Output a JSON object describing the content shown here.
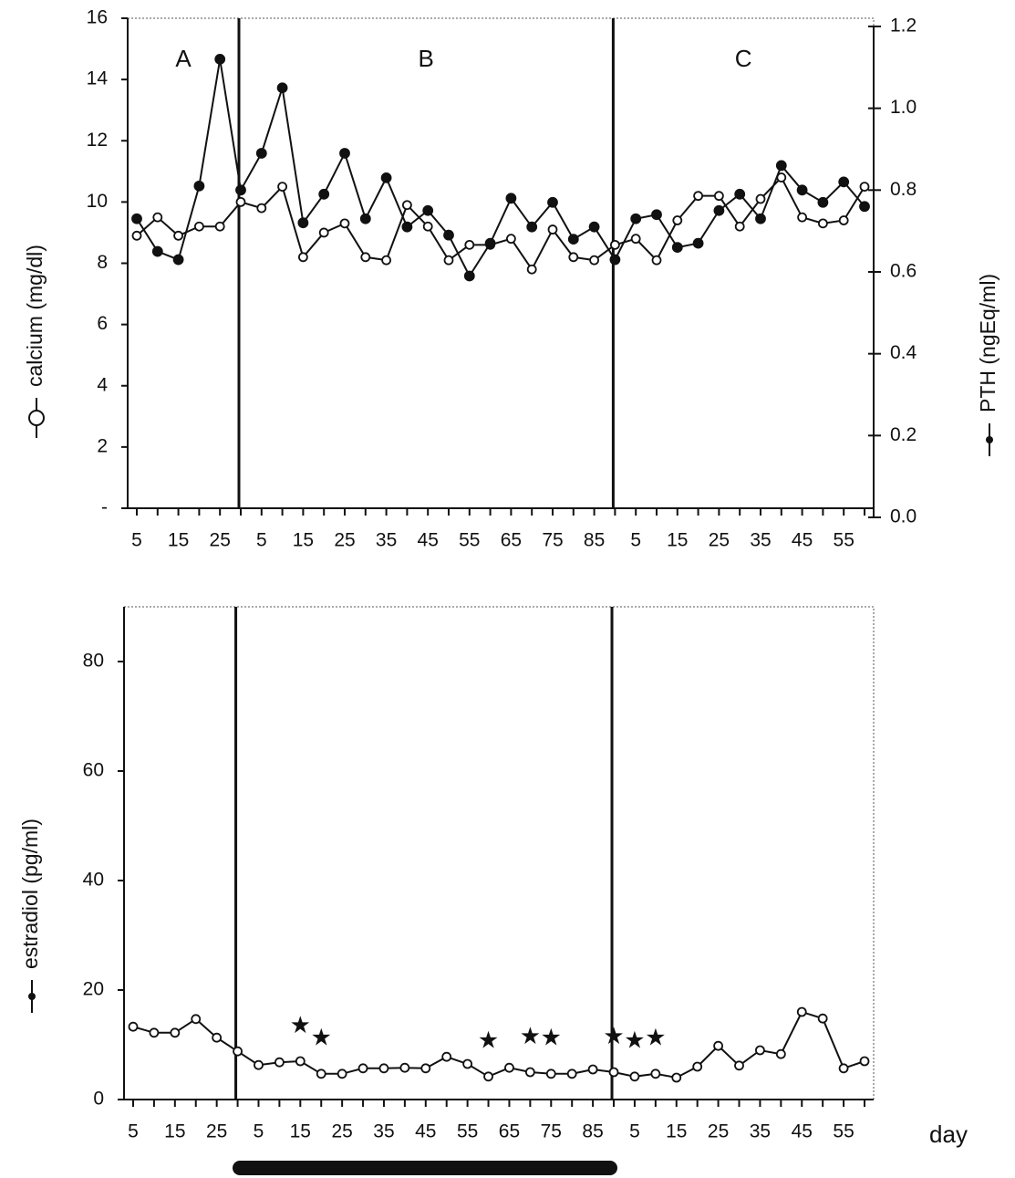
{
  "chart_data": [
    {
      "type": "line",
      "y_label": "calcium (mg/dl)",
      "y2_label": "PTH (ngEq/ml)",
      "annotations": [
        "A",
        "B",
        "C"
      ],
      "categories": [
        5,
        null,
        15,
        null,
        25,
        null,
        5,
        null,
        15,
        null,
        25,
        null,
        35,
        null,
        45,
        null,
        55,
        null,
        65,
        null,
        75,
        null,
        85,
        null,
        5,
        null,
        15,
        null,
        25,
        null,
        35,
        null,
        45,
        null,
        55,
        null
      ],
      "ylim": [
        0,
        16
      ],
      "yticks": [
        {
          "value": 0,
          "label": "-"
        },
        2,
        4,
        6,
        8,
        10,
        12,
        14,
        16
      ],
      "y2lim": [
        0,
        1.2
      ],
      "y2ticks": [
        {
          "value": 0,
          "label": "0.0"
        },
        0.2,
        0.4,
        0.6,
        0.8,
        {
          "value": 1,
          "label": "1.0"
        },
        1.2
      ],
      "series": [
        {
          "marker": "open",
          "color": "#111111",
          "values": [
            8.9,
            9.5,
            8.9,
            9.2,
            9.2,
            10.0,
            9.8,
            10.5,
            8.2,
            9.0,
            9.3,
            8.2,
            8.1,
            9.9,
            9.2,
            8.1,
            8.6,
            8.6,
            8.8,
            7.8,
            9.1,
            8.2,
            8.1,
            8.6,
            8.8,
            8.1,
            9.4,
            10.2,
            10.2,
            9.2,
            10.1,
            10.8,
            9.5,
            9.3,
            9.4,
            10.5
          ]
        },
        {
          "marker": "filled",
          "color": "#111111",
          "axis": "y2",
          "values": [
            0.73,
            0.65,
            0.63,
            0.81,
            1.12,
            0.8,
            0.89,
            1.05,
            0.72,
            0.79,
            0.89,
            0.73,
            0.83,
            0.71,
            0.75,
            0.69,
            0.59,
            0.67,
            0.78,
            0.71,
            0.77,
            0.68,
            0.71,
            0.63,
            0.73,
            0.74,
            0.66,
            0.67,
            0.75,
            0.79,
            0.73,
            0.86,
            0.8,
            0.77,
            0.82,
            0.76
          ]
        }
      ]
    },
    {
      "type": "line",
      "y_label": "estradiol (pg/ml)",
      "x_label": "day",
      "categories": [
        5,
        null,
        15,
        null,
        25,
        null,
        5,
        null,
        15,
        null,
        25,
        null,
        35,
        null,
        45,
        null,
        55,
        null,
        65,
        null,
        75,
        null,
        85,
        null,
        5,
        null,
        15,
        null,
        25,
        null,
        35,
        null,
        45,
        null,
        55,
        null
      ],
      "ylim": [
        0,
        90
      ],
      "yticks": [
        0,
        20,
        40,
        60,
        80
      ],
      "significance": {
        "symbol": "★",
        "categories": [
          8,
          9,
          17,
          19,
          20,
          23,
          24,
          25
        ]
      },
      "series": [
        {
          "marker": "open",
          "color": "#111111",
          "values": [
            13.3,
            12.2,
            12.2,
            14.7,
            11.3,
            8.8,
            6.3,
            6.8,
            7.0,
            4.7,
            4.7,
            5.7,
            5.7,
            5.8,
            5.7,
            7.8,
            6.5,
            4.2,
            5.8,
            5.0,
            4.7,
            4.7,
            5.5,
            5.0,
            4.2,
            4.7,
            4.0,
            6.0,
            9.8,
            6.2,
            9.0,
            8.3,
            16.0,
            14.8,
            5.7,
            7.0
          ]
        }
      ]
    }
  ]
}
